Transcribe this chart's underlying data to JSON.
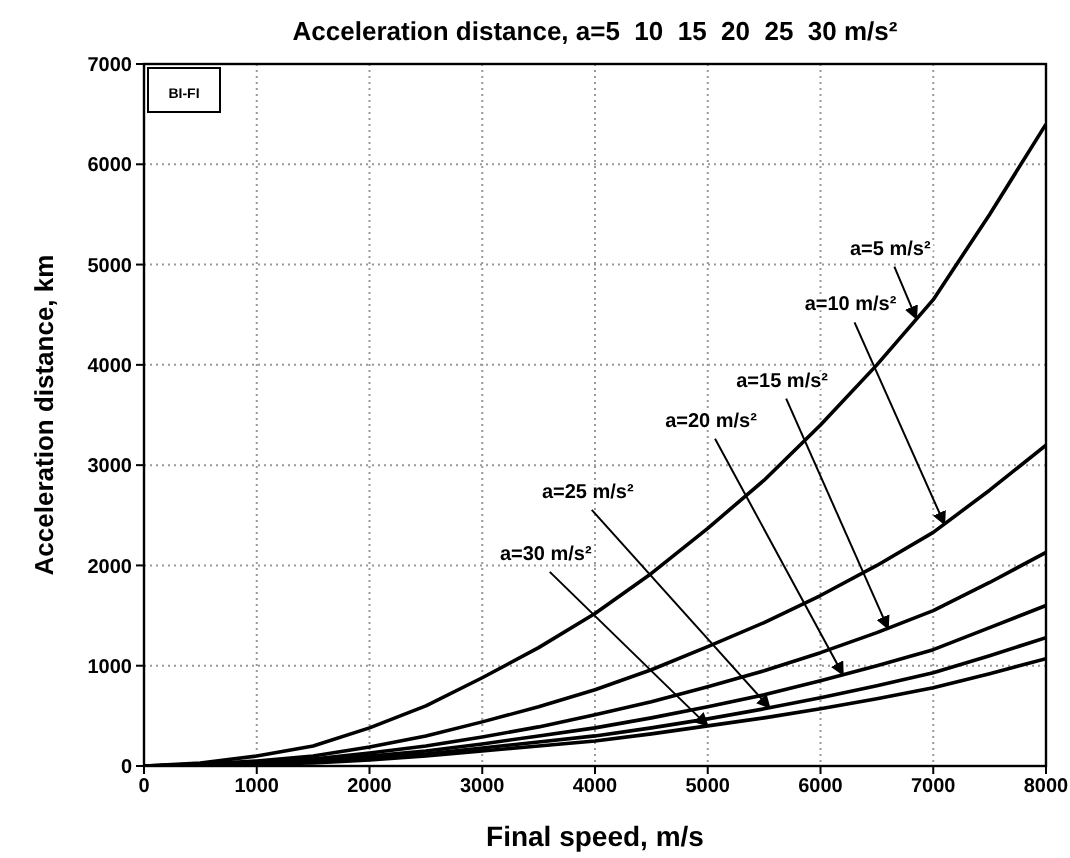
{
  "chart_data": {
    "type": "line",
    "title": "Acceleration distance, a=5  10  15  20  25  30 m/s²",
    "xlabel": "Final speed, m/s",
    "ylabel": "Acceleration distance, km",
    "x": [
      0,
      500,
      1000,
      1500,
      2000,
      2500,
      3000,
      3500,
      4000,
      4500,
      5000,
      5500,
      6000,
      6500,
      7000,
      7500,
      8000
    ],
    "series": [
      {
        "color": "#000000",
        "values": [
          0,
          30,
          100,
          200,
          380,
          600,
          880,
          1180,
          1520,
          1920,
          2370,
          2850,
          3400,
          4000,
          4650,
          5500,
          6400
        ]
      },
      {
        "color": "#000000",
        "values": [
          0,
          20,
          50,
          100,
          190,
          300,
          440,
          590,
          760,
          960,
          1190,
          1430,
          1700,
          2000,
          2330,
          2750,
          3200
        ]
      },
      {
        "color": "#000000",
        "values": [
          0,
          10,
          30,
          70,
          130,
          200,
          290,
          390,
          510,
          640,
          790,
          950,
          1130,
          1330,
          1550,
          1830,
          2130
        ]
      },
      {
        "color": "#000000",
        "values": [
          0,
          10,
          30,
          50,
          100,
          150,
          220,
          300,
          380,
          480,
          590,
          710,
          850,
          1000,
          1160,
          1380,
          1600
        ]
      },
      {
        "color": "#000000",
        "values": [
          0,
          10,
          20,
          40,
          80,
          120,
          180,
          240,
          300,
          380,
          470,
          570,
          680,
          800,
          930,
          1100,
          1280
        ]
      },
      {
        "color": "#000000",
        "values": [
          0,
          10,
          20,
          30,
          60,
          100,
          150,
          200,
          250,
          320,
          400,
          480,
          570,
          670,
          780,
          920,
          1070
        ]
      }
    ],
    "xlim": [
      0,
      8000
    ],
    "xticks": [
      0,
      1000,
      2000,
      3000,
      4000,
      5000,
      6000,
      7000,
      8000
    ],
    "ylim": [
      0,
      7000
    ],
    "yticks": [
      0,
      1000,
      2000,
      3000,
      4000,
      5000,
      6000,
      7000
    ],
    "grid": true,
    "legend": false,
    "marker": "none",
    "line_style": "solid",
    "annotations": [
      "BI-FI",
      {
        "text": "a=5 m/s²",
        "x": 6850,
        "y": 4460
      },
      {
        "text": "a=10 m/s²",
        "x": 7100,
        "y": 2410
      },
      {
        "text": "a=15 m/s²",
        "x": 6600,
        "y": 1370
      },
      {
        "text": "a=20 m/s²",
        "x": 6200,
        "y": 910
      },
      {
        "text": "a=25 m/s²",
        "x": 5550,
        "y": 580
      },
      {
        "text": "a=30 m/s²",
        "x": 5000,
        "y": 400
      }
    ]
  }
}
